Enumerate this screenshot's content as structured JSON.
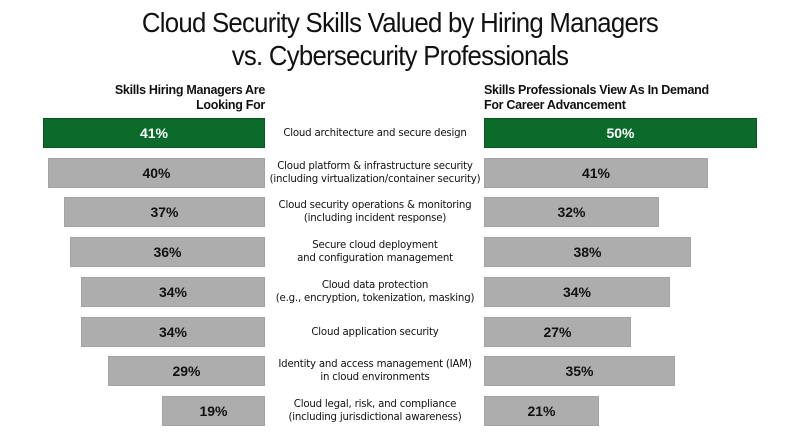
{
  "title": {
    "line1": "Cloud Security Skills Valued by Hiring Managers",
    "line2": "vs. Cybersecurity Professionals"
  },
  "left_header": {
    "line1": "Skills Hiring Managers Are",
    "line2": "Looking For"
  },
  "right_header": {
    "line1": "Skills Professionals View As In Demand",
    "line2": "For Career Advancement"
  },
  "colors": {
    "highlight": "#0b6b2b",
    "bar": "#adadad"
  },
  "rows": [
    {
      "skill_line1": "Cloud architecture and secure design",
      "skill_line2": "",
      "hiring_managers": "41%",
      "professionals": "50%",
      "highlight": true
    },
    {
      "skill_line1": "Cloud platform & infrastructure security",
      "skill_line2": "(including virtualization/container security)",
      "hiring_managers": "40%",
      "professionals": "41%",
      "highlight": false
    },
    {
      "skill_line1": "Cloud security operations & monitoring",
      "skill_line2": "(including incident response)",
      "hiring_managers": "37%",
      "professionals": "32%",
      "highlight": false
    },
    {
      "skill_line1": "Secure cloud deployment",
      "skill_line2": "and configuration management",
      "hiring_managers": "36%",
      "professionals": "38%",
      "highlight": false
    },
    {
      "skill_line1": "Cloud data protection",
      "skill_line2": "(e.g., encryption, tokenization, masking)",
      "hiring_managers": "34%",
      "professionals": "34%",
      "highlight": false
    },
    {
      "skill_line1": "Cloud application security",
      "skill_line2": "",
      "hiring_managers": "34%",
      "professionals": "27%",
      "highlight": false
    },
    {
      "skill_line1": "Identity and access management (IAM)",
      "skill_line2": "in cloud environments",
      "hiring_managers": "29%",
      "professionals": "35%",
      "highlight": false
    },
    {
      "skill_line1": "Cloud legal, risk, and compliance",
      "skill_line2": "(including jurisdictional awareness)",
      "hiring_managers": "19%",
      "professionals": "21%",
      "highlight": false
    }
  ],
  "chart_data": {
    "type": "bar",
    "orientation": "horizontal-butterfly",
    "title": "Cloud Security Skills Valued by Hiring Managers vs. Cybersecurity Professionals",
    "xlabel": "",
    "ylabel": "",
    "categories": [
      "Cloud architecture and secure design",
      "Cloud platform & infrastructure security (including virtualization/container security)",
      "Cloud security operations & monitoring (including incident response)",
      "Secure cloud deployment and configuration management",
      "Cloud data protection (e.g., encryption, tokenization, masking)",
      "Cloud application security",
      "Identity and access management (IAM) in cloud environments",
      "Cloud legal, risk, and compliance (including jurisdictional awareness)"
    ],
    "series": [
      {
        "name": "Skills Hiring Managers Are Looking For",
        "side": "left",
        "values": [
          41,
          40,
          37,
          36,
          34,
          34,
          29,
          19
        ]
      },
      {
        "name": "Skills Professionals View As In Demand For Career Advancement",
        "side": "right",
        "values": [
          50,
          41,
          32,
          38,
          34,
          27,
          35,
          21
        ]
      }
    ],
    "highlighted_category": "Cloud architecture and secure design",
    "units": "%",
    "grid": false,
    "legend": "column headers above each side"
  }
}
